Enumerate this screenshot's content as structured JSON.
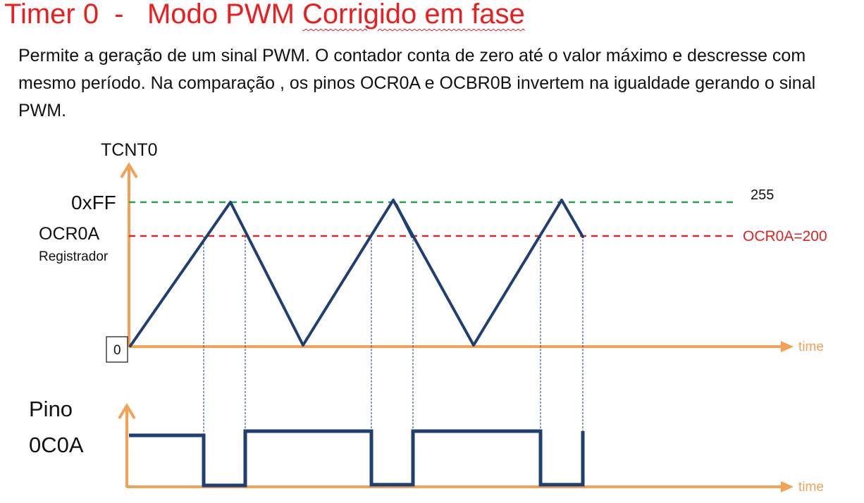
{
  "title": {
    "prefix": "Timer 0  -   Modo PWM ",
    "underlined": "Corrigido em fase"
  },
  "description": "Permite a geração de um sinal PWM. O contador conta de zero até o valor máximo e descresse com mesmo período. Na comparação , os pinos OCR0A e OCBR0B invertem na igualdade gerando o sinal PWM.",
  "counter_plot": {
    "y_label": "TCNT0",
    "top_label": "0xFF",
    "top_value_label": "255",
    "compare_label": "OCR0A",
    "compare_sublabel": "Registrador",
    "compare_value_label": "OCR0A=200",
    "zero_label": "0",
    "x_label": "time",
    "top_value": 255,
    "compare_value": 200
  },
  "pin_plot": {
    "label_line1": "Pino",
    "label_line2": "0C0A",
    "x_label": "time"
  },
  "colors": {
    "axis": "#f4a055",
    "waveform": "#1f3f73",
    "top_line": "#1aa84c",
    "compare_line": "#e52222",
    "title": "#ee1c1c",
    "guide": "#1f3f73"
  }
}
